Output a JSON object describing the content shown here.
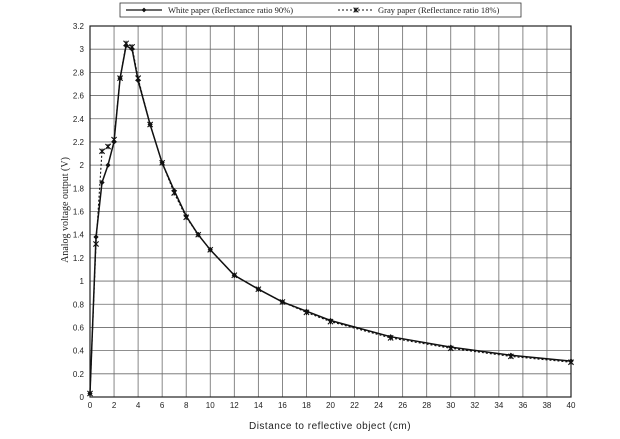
{
  "chart_data": {
    "type": "line",
    "title": "",
    "xlabel": "Distance to reflective object   (cm)",
    "ylabel": "Analog voltage output (V)",
    "xlim": [
      0,
      40
    ],
    "ylim": [
      0,
      3.2
    ],
    "grid": true,
    "legend_position": "top-center",
    "x_ticks": [
      0,
      2,
      4,
      6,
      8,
      10,
      12,
      14,
      16,
      18,
      20,
      22,
      24,
      26,
      28,
      30,
      32,
      34,
      36,
      38,
      40
    ],
    "y_ticks": [
      0,
      0.2,
      0.4,
      0.6,
      0.8,
      1,
      1.2,
      1.4,
      1.6,
      1.8,
      2,
      2.2,
      2.4,
      2.6,
      2.8,
      3,
      3.2
    ],
    "series": [
      {
        "name": "White paper (Reflectance ratio 90%)",
        "line": "solid",
        "marker": "diamond",
        "x": [
          0,
          0.5,
          1,
          1.5,
          2,
          2.5,
          3,
          3.5,
          4,
          5,
          6,
          7,
          8,
          9,
          10,
          12,
          14,
          16,
          18,
          20,
          25,
          30,
          35,
          40
        ],
        "y": [
          0.03,
          1.38,
          1.85,
          2.0,
          2.2,
          2.75,
          3.03,
          3.0,
          2.73,
          2.35,
          2.02,
          1.78,
          1.56,
          1.4,
          1.27,
          1.05,
          0.93,
          0.82,
          0.74,
          0.66,
          0.52,
          0.43,
          0.36,
          0.31
        ]
      },
      {
        "name": "Gray paper (Reflectance ratio 18%)",
        "line": "dotted",
        "marker": "asterisk",
        "x": [
          0,
          0.5,
          1,
          1.5,
          2,
          2.5,
          3,
          3.5,
          4,
          5,
          6,
          7,
          8,
          9,
          10,
          12,
          14,
          16,
          18,
          20,
          25,
          30,
          35,
          40
        ],
        "y": [
          0.03,
          1.32,
          2.12,
          2.16,
          2.22,
          2.75,
          3.05,
          3.02,
          2.75,
          2.35,
          2.02,
          1.76,
          1.55,
          1.4,
          1.27,
          1.05,
          0.93,
          0.82,
          0.73,
          0.65,
          0.51,
          0.42,
          0.35,
          0.3
        ]
      }
    ]
  }
}
